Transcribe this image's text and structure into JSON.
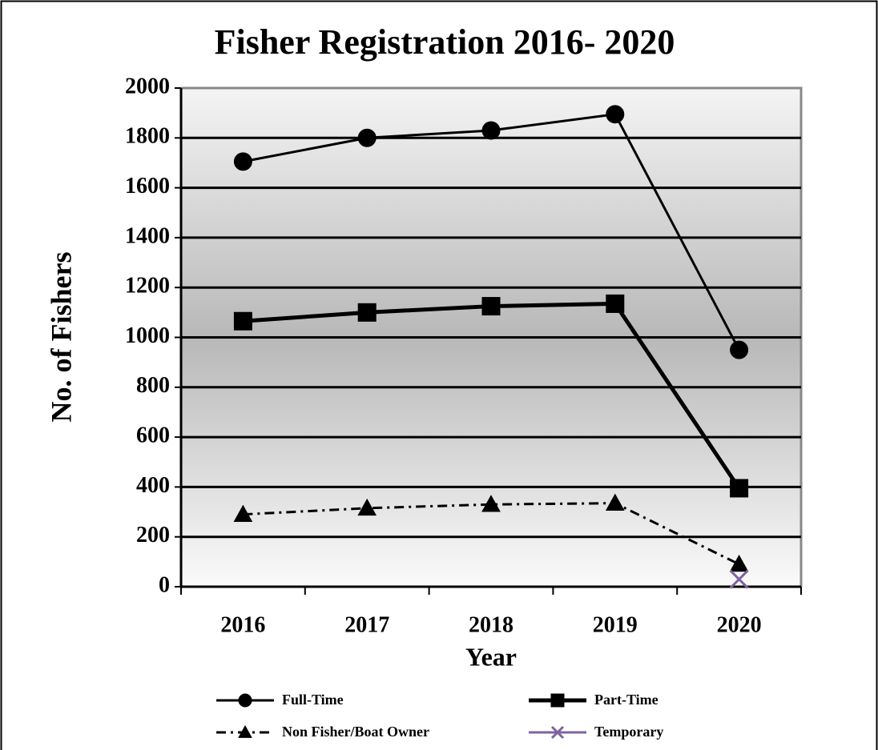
{
  "chart_data": {
    "type": "line",
    "title": "Fisher Registration 2016- 2020",
    "x_label": "Year",
    "y_label": "No. of Fishers",
    "categories": [
      "2016",
      "2017",
      "2018",
      "2019",
      "2020"
    ],
    "series": [
      {
        "name": "Full-Time",
        "color": "#000000",
        "marker": "circle",
        "dash": "solid",
        "values": [
          1705,
          1800,
          1830,
          1895,
          950
        ]
      },
      {
        "name": "Part-Time",
        "color": "#000000",
        "marker": "square",
        "dash": "solid",
        "values": [
          1065,
          1100,
          1125,
          1135,
          395
        ]
      },
      {
        "name": "Non Fisher/Boat Owner",
        "color": "#000000",
        "marker": "triangle",
        "dash": "dashdot",
        "values": [
          290,
          315,
          330,
          335,
          90
        ]
      },
      {
        "name": "Temporary",
        "color": "#7f63a0",
        "marker": "x",
        "dash": "solid",
        "values": [
          null,
          null,
          null,
          null,
          30
        ]
      }
    ],
    "ylim": [
      0,
      2000
    ],
    "yticks": [
      0,
      200,
      400,
      600,
      800,
      1000,
      1200,
      1400,
      1600,
      1800,
      2000
    ],
    "grid": true,
    "legend": "bottom"
  }
}
